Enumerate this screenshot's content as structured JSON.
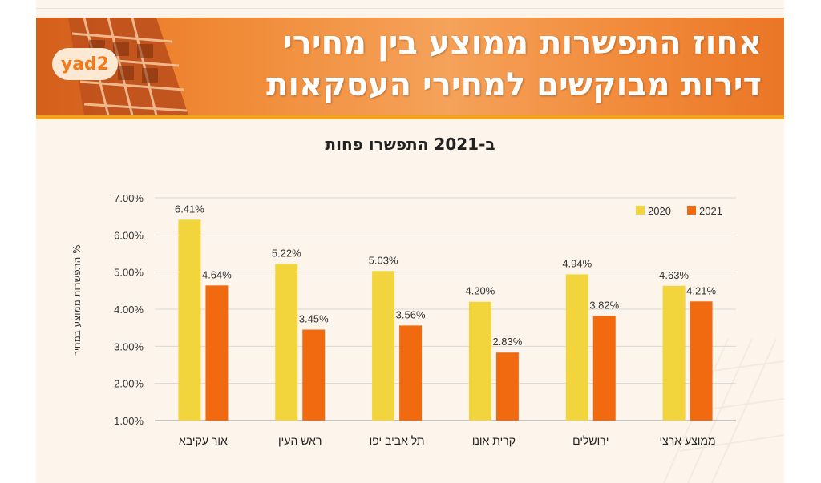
{
  "header": {
    "logo_text": "yad2",
    "title_line1": "אחוז התפשרות ממוצע בין מחירי",
    "title_line2": "דירות מבוקשים למחירי העסקאות"
  },
  "colors": {
    "series_2020": "#f2d53c",
    "series_2021": "#f26a10",
    "banner_orange": "#f08a36",
    "accent_bar": "#f3a21e"
  },
  "chart_data": {
    "type": "bar",
    "title": "ב-2021 התפשרו פחות",
    "ylabel": "% התפשרות ממוצע במחיר",
    "xlabel": "",
    "categories": [
      "אור עקיבא",
      "ראש העין",
      "תל אביב יפו",
      "קרית אונו",
      "ירושלים",
      "ממוצע ארצי"
    ],
    "series": [
      {
        "name": "2020",
        "values": [
          6.41,
          5.22,
          5.03,
          4.2,
          4.94,
          4.63
        ],
        "labels": [
          "6.41%",
          "5.22%",
          "5.03%",
          "4.20%",
          "4.94%",
          "4.63%"
        ]
      },
      {
        "name": "2021",
        "values": [
          4.64,
          3.45,
          3.56,
          2.83,
          3.82,
          4.21
        ],
        "labels": [
          "4.64%",
          "3.45%",
          "3.56%",
          "2.83%",
          "3.82%",
          "4.21%"
        ]
      }
    ],
    "ylim": [
      1,
      7
    ],
    "ytick_values": [
      1,
      2,
      3,
      4,
      5,
      6,
      7
    ],
    "ytick_labels": [
      "1.00%",
      "2.00%",
      "3.00%",
      "4.00%",
      "5.00%",
      "6.00%",
      "7.00%"
    ],
    "grid": true,
    "legend_position": "top-right"
  }
}
